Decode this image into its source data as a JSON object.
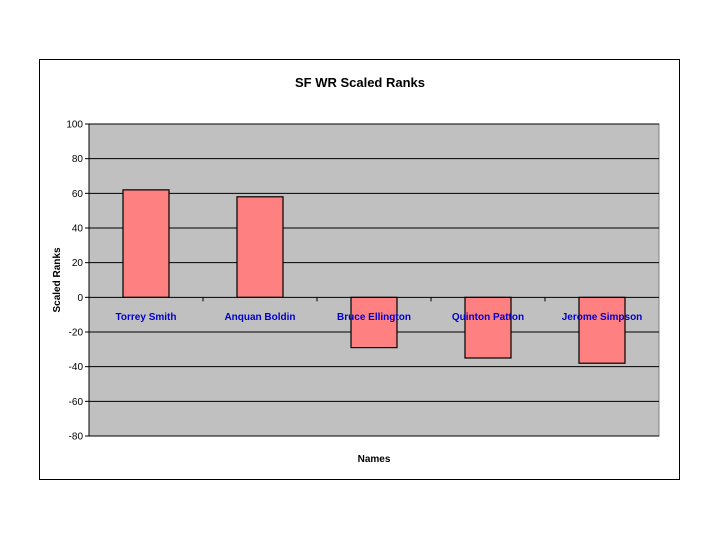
{
  "chart_data": {
    "type": "bar",
    "title": "SF WR  Scaled Ranks",
    "xlabel": "Names",
    "ylabel": "Scaled Ranks",
    "categories": [
      "Torrey Smith",
      "Anquan Boldin",
      "Bruce Ellington",
      "Quinton Patton",
      "Jerome Simpson"
    ],
    "values": [
      62,
      58,
      -29,
      -35,
      -38
    ],
    "ylim": [
      -80,
      100
    ],
    "yticks": [
      100,
      80,
      60,
      40,
      20,
      0,
      -20,
      -40,
      -60,
      -80
    ],
    "grid": true,
    "legend": "none",
    "colors": {
      "bar_fill": "#FF8080",
      "bar_stroke": "#000000",
      "plot_bg": "#C0C0C0",
      "category_label": "#0000CC",
      "gridline": "#000000"
    }
  }
}
